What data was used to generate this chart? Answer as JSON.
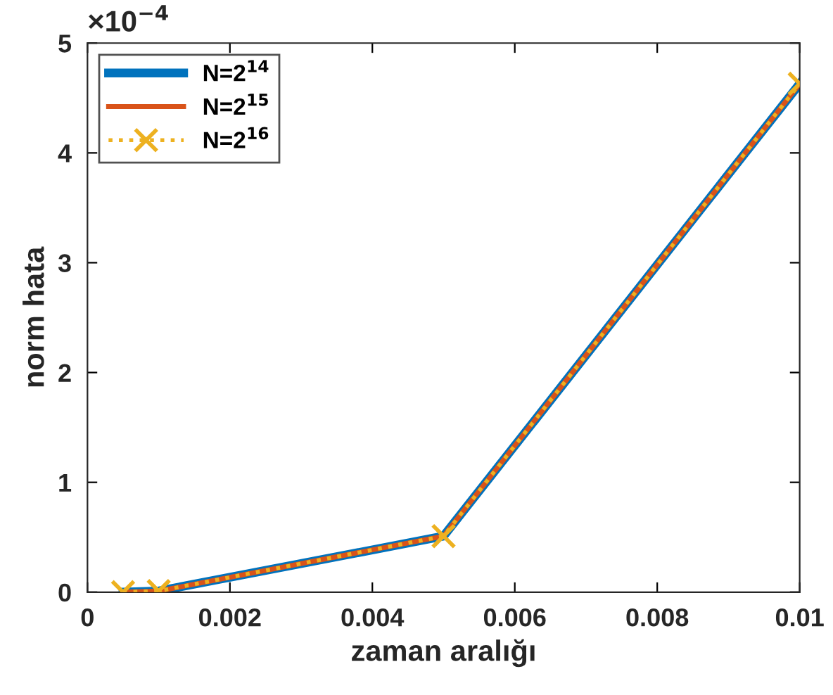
{
  "chart_data": {
    "type": "line",
    "xlabel": "zaman aralığı",
    "ylabel": "norm hata",
    "x": [
      0.0005,
      0.001,
      0.005,
      0.01
    ],
    "series": [
      {
        "name": "N=2$^{14}$",
        "color": "#0072bd",
        "values": [
          0,
          0.01,
          0.51,
          4.63
        ],
        "line_style": "solid",
        "marker": "none"
      },
      {
        "name": "N=2$^{15}$",
        "color": "#d95319",
        "values": [
          0,
          0.01,
          0.51,
          4.63
        ],
        "line_style": "solid",
        "marker": "none"
      },
      {
        "name": "N=2$^{16}$",
        "color": "#edb120",
        "values": [
          0,
          0.01,
          0.51,
          4.63
        ],
        "line_style": "dotted",
        "marker": "cross"
      }
    ],
    "xlim": [
      0,
      0.01
    ],
    "xticks": [
      0,
      0.002,
      0.004,
      0.006,
      0.008,
      0.01
    ],
    "ylim": [
      0,
      5
    ],
    "yticks": [
      0,
      1,
      2,
      3,
      4,
      5
    ],
    "annotations": [
      "×10$^{−4}$"
    ],
    "grid": false,
    "legend": "top left"
  }
}
